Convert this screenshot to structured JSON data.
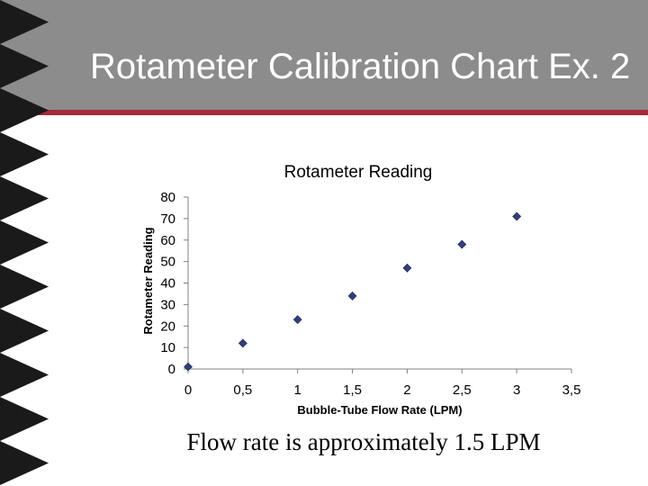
{
  "slide": {
    "title": "Rotameter Calibration Chart Ex. 2",
    "caption": "Flow rate is approximately 1.5 LPM",
    "colors": {
      "header": "#8c8c8c",
      "accent_line": "#a52a3a",
      "triangles": "#1a1a1a",
      "marker": "#2f3f7f"
    }
  },
  "chart_data": {
    "type": "scatter",
    "title": "Rotameter Reading",
    "xlabel": "Bubble-Tube Flow Rate (LPM)",
    "ylabel": "Rotameter Reading",
    "xlim": [
      0,
      3.5
    ],
    "ylim": [
      0,
      80
    ],
    "x_ticks": [
      "0",
      "0,5",
      "1",
      "1,5",
      "2",
      "2,5",
      "3",
      "3,5"
    ],
    "y_ticks": [
      "0",
      "10",
      "20",
      "30",
      "40",
      "50",
      "60",
      "70",
      "80"
    ],
    "grid": false,
    "legend": "none",
    "points": [
      {
        "x": 0,
        "y": 1
      },
      {
        "x": 0.5,
        "y": 12
      },
      {
        "x": 1,
        "y": 23
      },
      {
        "x": 1.5,
        "y": 34
      },
      {
        "x": 2,
        "y": 47
      },
      {
        "x": 2.5,
        "y": 58
      },
      {
        "x": 3,
        "y": 71
      }
    ]
  }
}
